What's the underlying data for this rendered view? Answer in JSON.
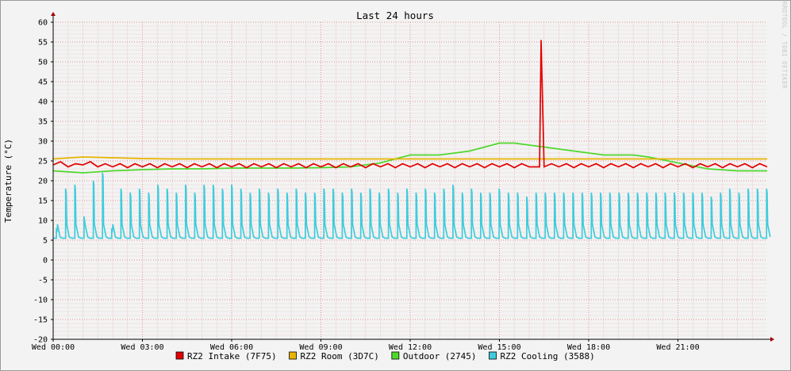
{
  "chart_data": {
    "type": "line",
    "title": "Last 24 hours",
    "ylabel": "Temperature (°C)",
    "xlabel": "",
    "ylim": [
      -20,
      60
    ],
    "yticks": [
      60,
      55,
      50,
      45,
      40,
      35,
      30,
      25,
      20,
      15,
      10,
      5,
      0,
      -5,
      -10,
      -15,
      -20
    ],
    "xlim_hours": [
      0,
      24
    ],
    "xticks": [
      {
        "hour": 0,
        "label": "Wed 00:00"
      },
      {
        "hour": 3,
        "label": "Wed 03:00"
      },
      {
        "hour": 6,
        "label": "Wed 06:00"
      },
      {
        "hour": 9,
        "label": "Wed 09:00"
      },
      {
        "hour": 12,
        "label": "Wed 12:00"
      },
      {
        "hour": 15,
        "label": "Wed 15:00"
      },
      {
        "hour": 18,
        "label": "Wed 18:00"
      },
      {
        "hour": 21,
        "label": "Wed 21:00"
      }
    ],
    "grid": true,
    "legend_position": "bottom",
    "watermark": "RRDTOOL / TOBI OETIKER",
    "series": [
      {
        "name": "RZ2 Intake (7F75)",
        "color": "#e30000",
        "x": [
          0,
          0.5,
          1,
          1.5,
          2,
          3,
          4,
          5,
          6,
          7,
          8,
          9,
          10,
          11,
          12,
          13,
          14,
          15,
          16,
          16.35,
          16.4,
          16.5,
          17,
          18,
          19,
          20,
          21,
          22,
          23,
          24
        ],
        "y": [
          24,
          23.5,
          24,
          23.5,
          23.5,
          23.5,
          23.5,
          23.5,
          23.5,
          23.5,
          23.5,
          23.5,
          23.5,
          23.5,
          23.5,
          23.5,
          23.5,
          23.5,
          23.5,
          23.5,
          55.5,
          23.5,
          23.5,
          23.5,
          23.5,
          23.5,
          23.5,
          23.5,
          23.5,
          23.5
        ]
      },
      {
        "name": "RZ2 Room (3D7C)",
        "color": "#e8b400",
        "x": [
          0,
          1,
          2,
          3,
          4,
          5,
          6,
          7,
          8,
          9,
          10,
          11,
          12,
          13,
          14,
          15,
          16,
          17,
          18,
          19,
          20,
          21,
          22,
          23,
          24
        ],
        "y": [
          25.5,
          26,
          25.8,
          25.6,
          25.5,
          25.5,
          25.5,
          25.5,
          25.5,
          25.5,
          25.5,
          25.5,
          25.5,
          25.5,
          25.5,
          25.5,
          25.5,
          25.5,
          25.5,
          25.5,
          25.5,
          25.5,
          25.5,
          25.5,
          25.5
        ]
      },
      {
        "name": "Outdoor (2745)",
        "color": "#4fd82c",
        "x": [
          0,
          1,
          2,
          3,
          4,
          5,
          6,
          7,
          8,
          9,
          10,
          11,
          11.5,
          12,
          12.5,
          13,
          13.5,
          14,
          14.5,
          15,
          15.5,
          16,
          16.5,
          17,
          17.5,
          18,
          18.5,
          19,
          19.5,
          20,
          21,
          22,
          23,
          24
        ],
        "y": [
          22.5,
          22,
          22.5,
          22.8,
          23,
          23,
          23.2,
          23.2,
          23.2,
          23.3,
          23.5,
          24.5,
          25.5,
          26.5,
          26.5,
          26.5,
          27,
          27.5,
          28.5,
          29.5,
          29.5,
          29,
          28.5,
          28,
          27.5,
          27,
          26.5,
          26.5,
          26.5,
          26,
          24.5,
          23,
          22.5,
          22.5
        ]
      },
      {
        "name": "RZ2 Cooling (3588)",
        "color": "#3fccdc",
        "base": 5.5,
        "x": [
          0.0,
          0.31,
          0.62,
          0.93,
          1.24,
          1.55,
          1.86,
          2.17,
          2.48,
          2.79,
          3.1,
          3.41,
          3.72,
          4.03,
          4.34,
          4.65,
          4.96,
          5.27,
          5.58,
          5.89,
          6.2,
          6.51,
          6.82,
          7.13,
          7.44,
          7.75,
          8.06,
          8.37,
          8.68,
          8.99,
          9.3,
          9.61,
          9.92,
          10.23,
          10.54,
          10.85,
          11.16,
          11.47,
          11.78,
          12.09,
          12.4,
          12.71,
          13.02,
          13.33,
          13.64,
          13.95,
          14.26,
          14.57,
          14.88,
          15.19,
          15.5,
          15.81,
          16.12,
          16.43,
          16.74,
          17.05,
          17.36,
          17.67,
          17.98,
          18.29,
          18.6,
          18.91,
          19.22,
          19.53,
          19.84,
          20.15,
          20.46,
          20.77,
          21.08,
          21.39,
          21.7,
          22.01,
          22.32,
          22.63,
          22.94,
          23.25,
          23.56,
          23.87
        ],
        "peaks": [
          8,
          18,
          19,
          11,
          20,
          22,
          8,
          18,
          17,
          18,
          17,
          19,
          18,
          17,
          19,
          17,
          19,
          19,
          18,
          19,
          18,
          17,
          18,
          17,
          18,
          17,
          18,
          17,
          17,
          18,
          18,
          17,
          18,
          17,
          18,
          17,
          18,
          17,
          18,
          17,
          18,
          17,
          18,
          19,
          17,
          18,
          17,
          17,
          18,
          17,
          17,
          16,
          17,
          17,
          17,
          17,
          17,
          17,
          17,
          17,
          17,
          17,
          17,
          17,
          17,
          17,
          17,
          17,
          17,
          17,
          17,
          16,
          17,
          18,
          17,
          18,
          18,
          18
        ]
      }
    ]
  }
}
